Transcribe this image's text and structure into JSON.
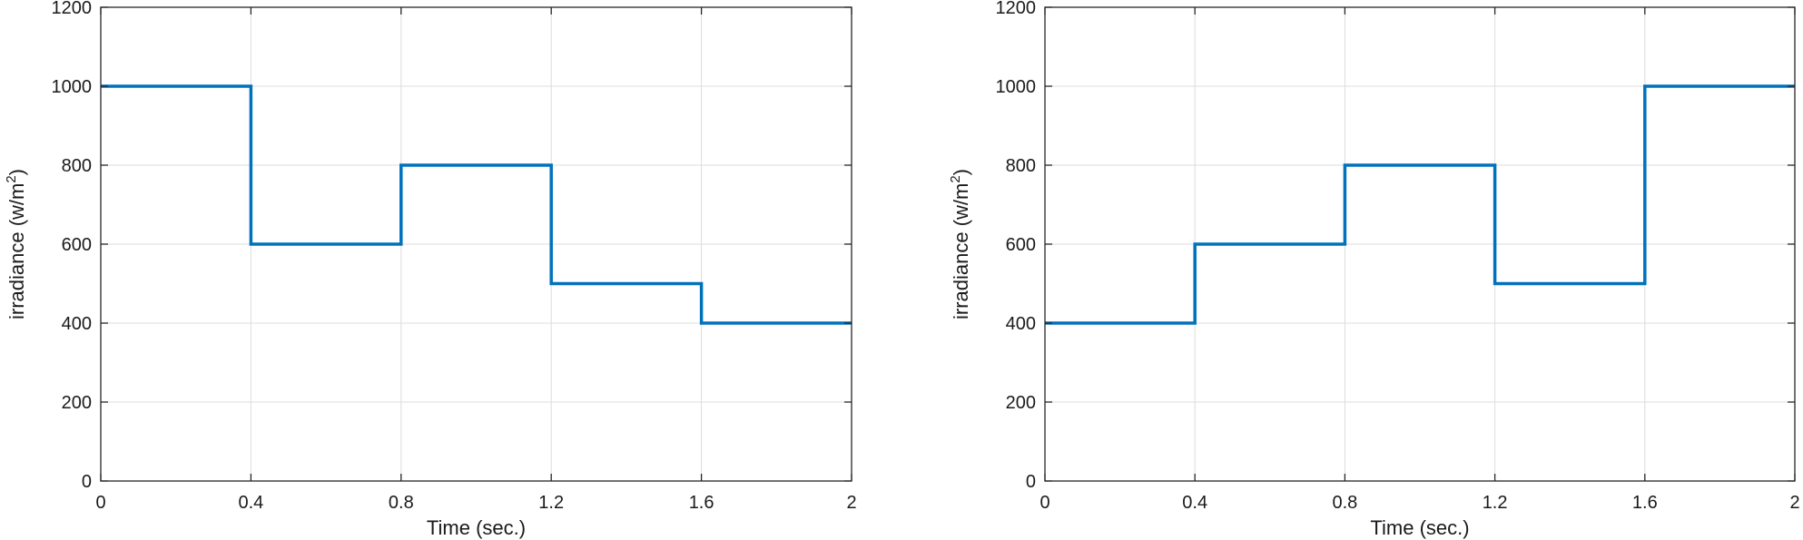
{
  "chart_data": [
    {
      "type": "line",
      "step": true,
      "title": "",
      "xlabel": "Time (sec.)",
      "ylabel_main": "irradiance (w/m",
      "ylabel_sup": "2",
      "ylabel_close": ")",
      "xlim": [
        0,
        2
      ],
      "ylim": [
        0,
        1200
      ],
      "xticks": [
        0,
        0.4,
        0.8,
        1.2,
        1.6,
        2
      ],
      "xtick_labels": [
        "0",
        "0.4",
        "0.8",
        "1.2",
        "1.6",
        "2"
      ],
      "yticks": [
        0,
        200,
        400,
        600,
        800,
        1000,
        1200
      ],
      "ytick_labels": [
        "0",
        "200",
        "400",
        "600",
        "800",
        "1000",
        "1200"
      ],
      "grid": true,
      "series": [
        {
          "color": "#0072BD",
          "x": [
            0,
            0.4,
            0.4,
            0.8,
            0.8,
            1.2,
            1.2,
            1.6,
            1.6,
            2
          ],
          "y": [
            1000,
            1000,
            600,
            600,
            800,
            800,
            500,
            500,
            400,
            400
          ]
        }
      ]
    },
    {
      "type": "line",
      "step": true,
      "title": "",
      "xlabel": "Time (sec.)",
      "ylabel_main": "irradiance (w/m",
      "ylabel_sup": "2",
      "ylabel_close": ")",
      "xlim": [
        0,
        2
      ],
      "ylim": [
        0,
        1200
      ],
      "xticks": [
        0,
        0.4,
        0.8,
        1.2,
        1.6,
        2
      ],
      "xtick_labels": [
        "0",
        "0.4",
        "0.8",
        "1.2",
        "1.6",
        "2"
      ],
      "yticks": [
        0,
        200,
        400,
        600,
        800,
        1000,
        1200
      ],
      "ytick_labels": [
        "0",
        "200",
        "400",
        "600",
        "800",
        "1000",
        "1200"
      ],
      "grid": true,
      "series": [
        {
          "color": "#0072BD",
          "x": [
            0,
            0.4,
            0.4,
            0.8,
            0.8,
            1.2,
            1.2,
            1.6,
            1.6,
            2
          ],
          "y": [
            400,
            400,
            600,
            600,
            800,
            800,
            500,
            500,
            1000,
            1000
          ]
        }
      ]
    }
  ]
}
